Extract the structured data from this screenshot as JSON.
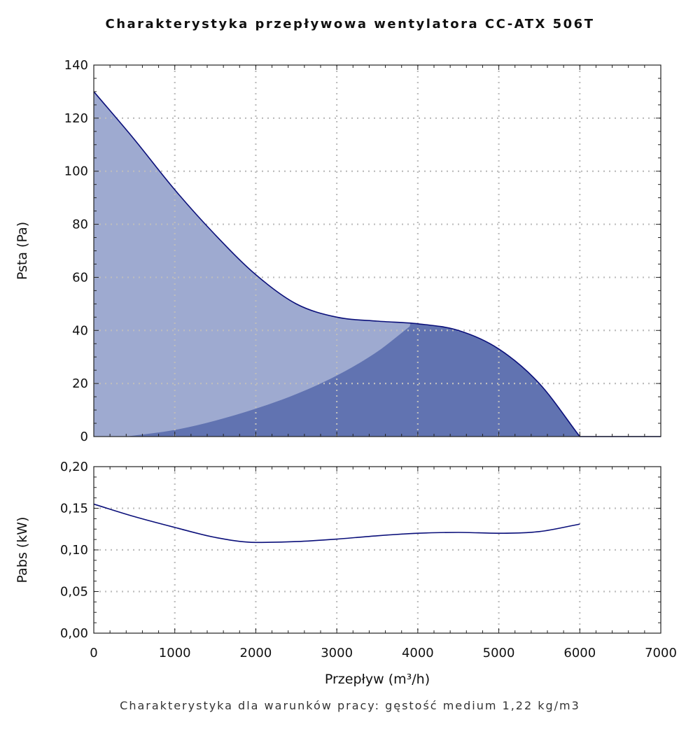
{
  "chart_data": [
    {
      "type": "area",
      "title": "Charakterystyka przepływowa wentylatora CC-ATX 506T",
      "ylabel": "Psta (Pa)",
      "xlim": [
        0,
        7000
      ],
      "ylim": [
        0,
        140
      ],
      "yticks": [
        "0",
        "20",
        "40",
        "60",
        "80",
        "100",
        "120",
        "140"
      ],
      "grid": true,
      "series": [
        {
          "x": [
            0,
            500,
            1000,
            1500,
            2000,
            2500,
            3000,
            3500,
            4000,
            4500,
            5000,
            5500,
            6000
          ],
          "values": [
            130,
            112,
            93,
            76,
            61,
            50,
            45,
            43.5,
            42.5,
            40,
            33,
            20,
            0
          ],
          "color": "#9eaad0"
        },
        {
          "x": [
            400,
            1000,
            1500,
            2000,
            2500,
            3000,
            3500,
            3900
          ],
          "values": [
            0,
            2.5,
            6,
            10.5,
            16,
            23,
            32,
            41.5
          ],
          "color": "#6173b1"
        }
      ],
      "line_color": "#0a0f7a"
    },
    {
      "type": "line",
      "ylabel": "Pabs (kW)",
      "xlabel": "Przepływ (m³/h)",
      "xlim": [
        0,
        7000
      ],
      "ylim": [
        0,
        0.2
      ],
      "xticks": [
        "0",
        "1000",
        "2000",
        "3000",
        "4000",
        "5000",
        "6000",
        "7000"
      ],
      "yticks": [
        "0,00",
        "0,05",
        "0,10",
        "0,15",
        "0,20"
      ],
      "grid": true,
      "series": [
        {
          "x": [
            0,
            500,
            1000,
            1500,
            2000,
            2500,
            3000,
            3500,
            4000,
            4500,
            5000,
            5500,
            6000
          ],
          "values": [
            0.155,
            0.14,
            0.127,
            0.115,
            0.109,
            0.11,
            0.113,
            0.117,
            0.12,
            0.121,
            0.12,
            0.122,
            0.131
          ],
          "color": "#0a0f7a"
        }
      ]
    }
  ],
  "footnote": "Charakterystyka dla warunków pracy: gęstość medium 1,22 kg/m3"
}
